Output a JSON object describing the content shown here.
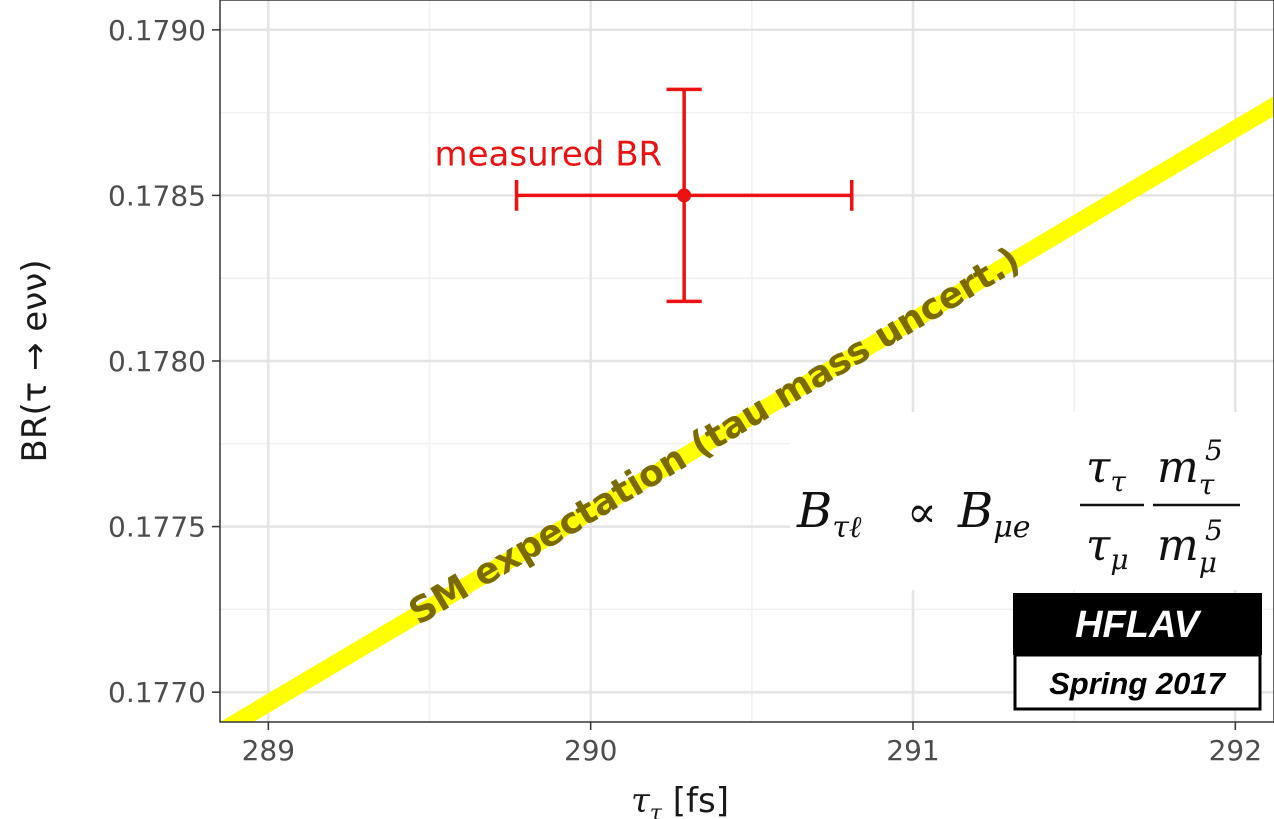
{
  "chart_data": {
    "type": "scatter",
    "xlabel": "τ",
    "xlabel_sub": "τ",
    "xlabel_unit": " [fs]",
    "ylabel": "BR(τ → eνν)",
    "xlim": [
      288.85,
      292.12
    ],
    "ylim": [
      0.17691,
      0.17909
    ],
    "x_ticks": [
      289,
      290,
      291,
      292
    ],
    "x_tick_labels": [
      "289",
      "290",
      "291",
      "292"
    ],
    "y_ticks": [
      0.177,
      0.1775,
      0.178,
      0.1785,
      0.179
    ],
    "y_tick_labels": [
      "0.1770",
      "0.1775",
      "0.1780",
      "0.1785",
      "0.1790"
    ],
    "grid": true,
    "points": [
      {
        "label": "measured BR",
        "x": 290.29,
        "y": 0.1785,
        "x_err": [
          289.77,
          290.81
        ],
        "y_err": [
          0.17818,
          0.17882
        ],
        "color": "#ee1111"
      }
    ],
    "band": {
      "label": "SM expectation (tau mass uncert.)",
      "color": "#ffff00",
      "center_line": {
        "x": [
          288.85,
          292.12
        ],
        "y": [
          0.17688,
          0.17877
        ]
      },
      "half_width_y": 3e-05
    },
    "formula": {
      "lhs": "B",
      "lhs_sub": "τℓ",
      "relation": "∝",
      "rhs": "B",
      "rhs_sub": "μe",
      "frac1_num": "τ",
      "frac1_num_sub": "τ",
      "frac1_den": "τ",
      "frac1_den_sub": "μ",
      "frac2_num": "m",
      "frac2_num_sub": "τ",
      "frac2_num_sup": "5",
      "frac2_den": "m",
      "frac2_den_sub": "μ",
      "frac2_den_sup": "5"
    },
    "badge": {
      "top": "HFLAV",
      "bottom": "Spring 2017"
    }
  }
}
